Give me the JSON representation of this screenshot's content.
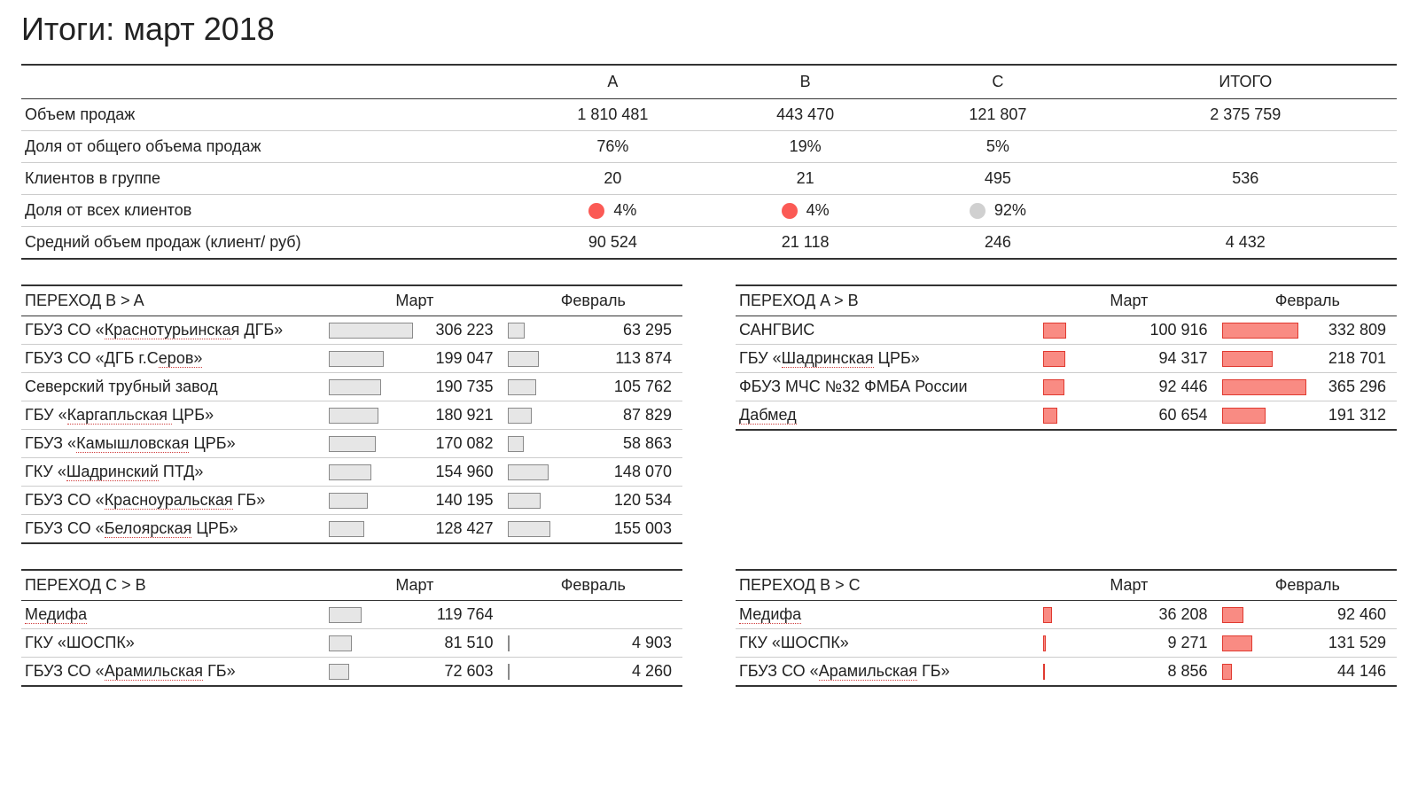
{
  "title": "Итоги: март 2018",
  "colors": {
    "text": "#222222",
    "rule_dark": "#333333",
    "rule_light": "#cccccc",
    "dot_red": "#fb5a55",
    "dot_grey": "#d0d0d0",
    "bar_grey_fill": "#e6e6e6",
    "bar_grey_stroke": "#8a8a8a",
    "bar_red_fill": "#f98b83",
    "bar_red_stroke": "#e03a30",
    "spell_underline": "#d04040"
  },
  "summary": {
    "type": "table",
    "columns": [
      "",
      "A",
      "B",
      "C",
      "ИТОГО"
    ],
    "col_widths_pct": [
      36,
      14,
      14,
      14,
      22
    ],
    "rows": [
      {
        "label": "Объем продаж",
        "values": [
          "1 810 481",
          "443 470",
          "121 807",
          "2 375 759"
        ]
      },
      {
        "label": "Доля от общего объема продаж",
        "values": [
          "76%",
          "19%",
          "5%",
          ""
        ]
      },
      {
        "label": "Клиентов в группе",
        "values": [
          "20",
          "21",
          "495",
          "536"
        ]
      },
      {
        "label": "Доля от всех клиентов",
        "values": [
          "4%",
          "4%",
          "92%",
          ""
        ],
        "dots": [
          "#fb5a55",
          "#fb5a55",
          "#d0d0d0",
          null
        ]
      },
      {
        "label": "Средний объем продаж (клиент/ руб)",
        "values": [
          "90 524",
          "21 118",
          "246",
          "4 432"
        ]
      }
    ]
  },
  "panel_columns": {
    "col1_label": "Март",
    "col2_label": "Февраль"
  },
  "panels": [
    {
      "id": "ba",
      "title": "ПЕРЕХОД B > A",
      "bar_fill": "#e6e6e6",
      "bar_stroke": "#8a8a8a",
      "max": 310000,
      "rows": [
        {
          "name": "ГБУЗ СО «Краснотурьинская ДГБ»",
          "u": [
            9,
            24
          ],
          "v1": 306223,
          "v2": 63295
        },
        {
          "name": "ГБУЗ СО «ДГБ г.Серов»",
          "u": [
            16,
            23
          ],
          "v1": 199047,
          "v2": 113874
        },
        {
          "name": "Северский трубный завод",
          "u": null,
          "v1": 190735,
          "v2": 105762
        },
        {
          "name": "ГБУ «Каргапльская ЦРБ»",
          "u": [
            5,
            18
          ],
          "v1": 180921,
          "v2": 87829
        },
        {
          "name": "ГБУЗ «Камышловская ЦРБ»",
          "u": [
            6,
            18
          ],
          "v1": 170082,
          "v2": 58863
        },
        {
          "name": "ГКУ «Шадринский ПТД»",
          "u": [
            5,
            15
          ],
          "v1": 154960,
          "v2": 148070
        },
        {
          "name": "ГБУЗ СО «Красноуральская ГБ»",
          "u": [
            9,
            24
          ],
          "v1": 140195,
          "v2": 120534
        },
        {
          "name": "ГБУЗ СО «Белоярская ЦРБ»",
          "u": [
            9,
            19
          ],
          "v1": 128427,
          "v2": 155003
        }
      ]
    },
    {
      "id": "ab",
      "title": "ПЕРЕХОД A > B",
      "bar_fill": "#f98b83",
      "bar_stroke": "#e03a30",
      "max": 370000,
      "rows": [
        {
          "name": "САНГВИС",
          "u": null,
          "v1": 100916,
          "v2": 332809
        },
        {
          "name": "ГБУ «Шадринская ЦРБ»",
          "u": [
            5,
            15
          ],
          "v1": 94317,
          "v2": 218701
        },
        {
          "name": "ФБУЗ МЧС №32 ФМБА России",
          "u": null,
          "v1": 92446,
          "v2": 365296
        },
        {
          "name": "Дабмед",
          "u": [
            0,
            6
          ],
          "v1": 60654,
          "v2": 191312
        }
      ]
    },
    {
      "id": "cb",
      "title": "ПЕРЕХОД C > B",
      "bar_fill": "#e6e6e6",
      "bar_stroke": "#8a8a8a",
      "max": 310000,
      "rows": [
        {
          "name": "Медифа",
          "u": [
            0,
            6
          ],
          "v1": 119764,
          "v2": null
        },
        {
          "name": "ГКУ «ШОСПК»",
          "u": null,
          "v1": 81510,
          "v2": 4903
        },
        {
          "name": "ГБУЗ СО «Арамильская ГБ»",
          "u": [
            9,
            20
          ],
          "v1": 72603,
          "v2": 4260
        }
      ]
    },
    {
      "id": "bc",
      "title": "ПЕРЕХОД B > C",
      "bar_fill": "#f98b83",
      "bar_stroke": "#e03a30",
      "max": 370000,
      "rows": [
        {
          "name": "Медифа",
          "u": [
            0,
            6
          ],
          "v1": 36208,
          "v2": 92460
        },
        {
          "name": "ГКУ «ШОСПК»",
          "u": null,
          "v1": 9271,
          "v2": 131529
        },
        {
          "name": "ГБУЗ СО «Арамильская ГБ»",
          "u": [
            9,
            20
          ],
          "v1": 8856,
          "v2": 44146
        }
      ]
    }
  ]
}
